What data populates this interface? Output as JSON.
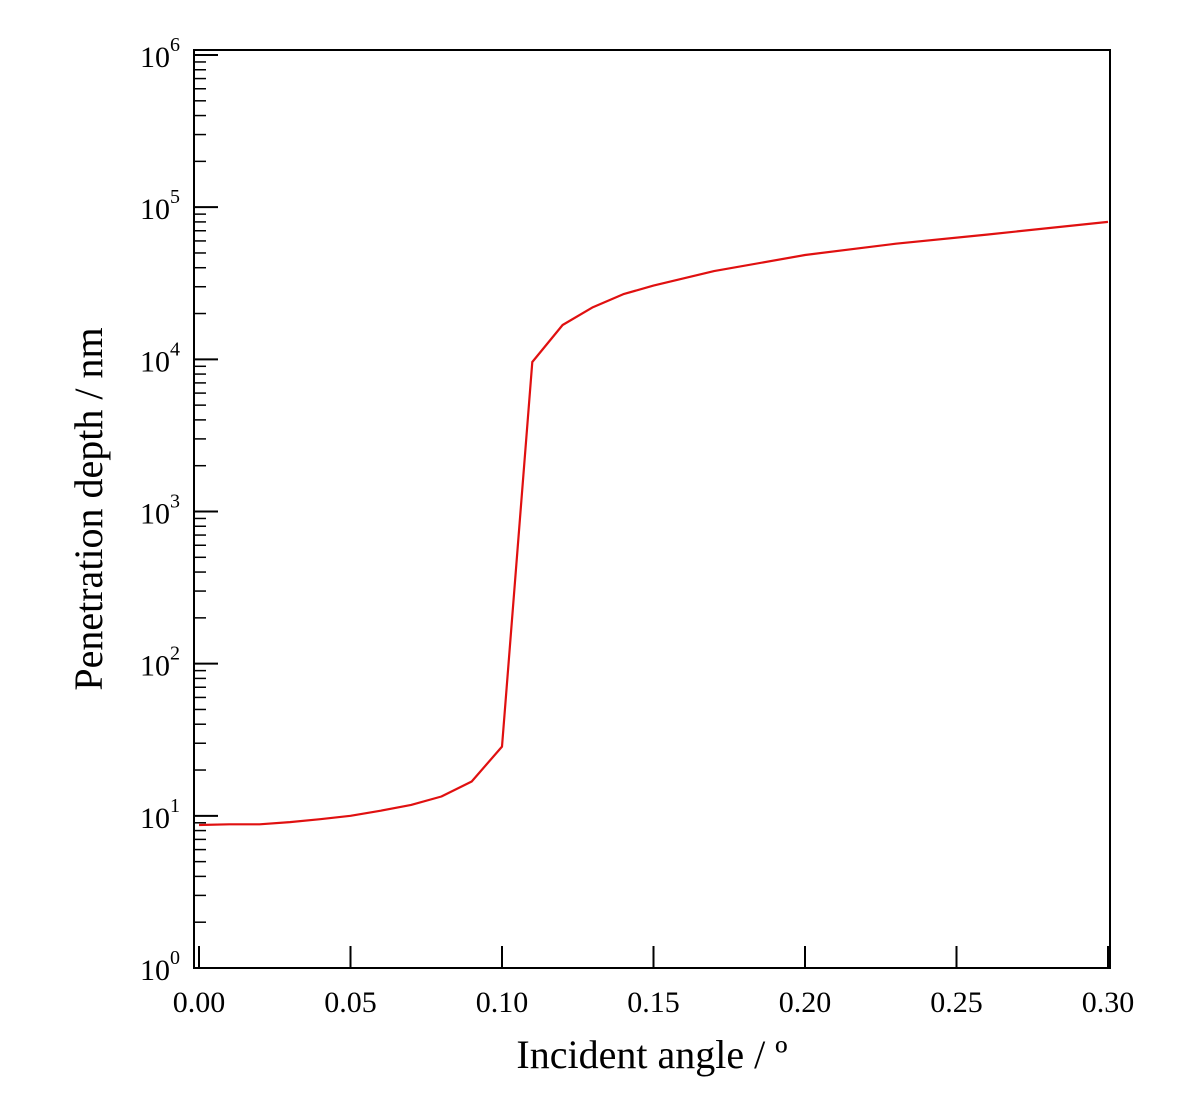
{
  "chart_data": {
    "type": "line",
    "title": "",
    "xlabel": "Incident angle / º",
    "ylabel": "Penetration depth / nm",
    "xlim": [
      0,
      0.3
    ],
    "ylim": [
      1,
      1000000
    ],
    "yscale": "log",
    "grid": false,
    "x_ticks": [
      "0.00",
      "0.05",
      "0.10",
      "0.15",
      "0.20",
      "0.25",
      "0.30"
    ],
    "y_ticks": [
      {
        "base": "10",
        "exp": "0"
      },
      {
        "base": "10",
        "exp": "1"
      },
      {
        "base": "10",
        "exp": "2"
      },
      {
        "base": "10",
        "exp": "3"
      },
      {
        "base": "10",
        "exp": "4"
      },
      {
        "base": "10",
        "exp": "5"
      },
      {
        "base": "10",
        "exp": "6"
      }
    ],
    "series": [
      {
        "color": "#e01010",
        "x": [
          0.0,
          0.01,
          0.02,
          0.03,
          0.04,
          0.05,
          0.06,
          0.07,
          0.08,
          0.09,
          0.1,
          0.11,
          0.12,
          0.13,
          0.14,
          0.15,
          0.17,
          0.2,
          0.23,
          0.26,
          0.3
        ],
        "y": [
          8.7,
          8.8,
          8.8,
          9.1,
          9.5,
          10.0,
          10.8,
          11.8,
          13.4,
          16.8,
          28.5,
          9600,
          16800,
          22000,
          26800,
          30500,
          38000,
          48500,
          57500,
          66000,
          80000
        ]
      }
    ]
  }
}
